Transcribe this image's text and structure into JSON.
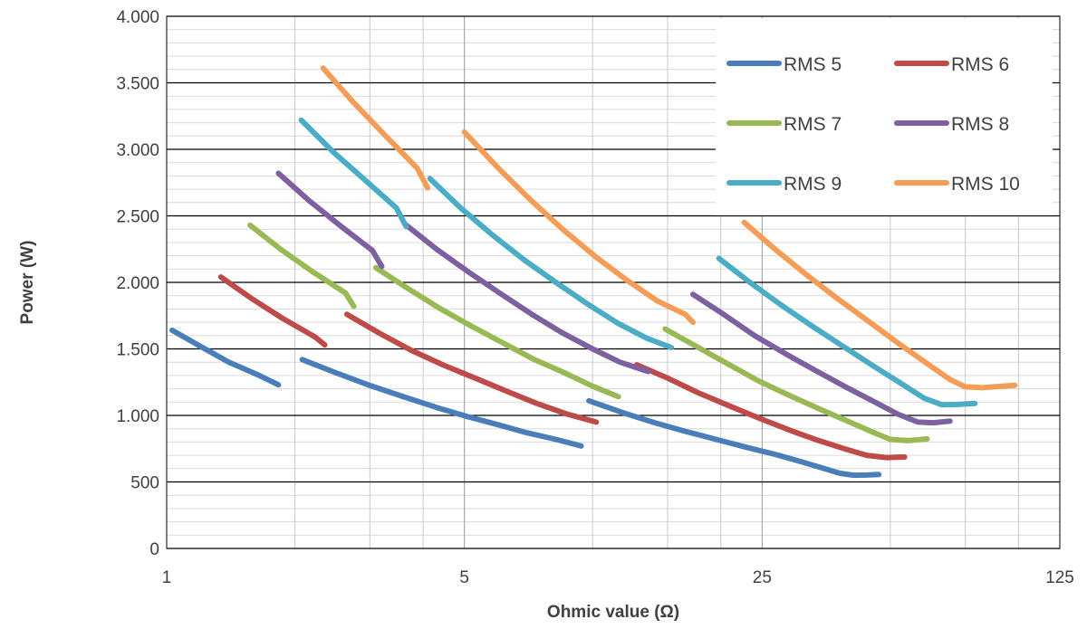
{
  "chart_data": {
    "type": "line",
    "xlabel": "Ohmic value (Ω)",
    "ylabel": "Power (W)",
    "x_scale": "log",
    "xlim": [
      1,
      125
    ],
    "ylim": [
      0,
      4000
    ],
    "x_ticks": [
      {
        "value": 1,
        "label": "1"
      },
      {
        "value": 5,
        "label": "5"
      },
      {
        "value": 25,
        "label": "25"
      },
      {
        "value": 125,
        "label": "125"
      }
    ],
    "y_ticks": [
      {
        "value": 0,
        "label": "0"
      },
      {
        "value": 500,
        "label": "500"
      },
      {
        "value": 1000,
        "label": "1.000"
      },
      {
        "value": 1500,
        "label": "1.500"
      },
      {
        "value": 2000,
        "label": "2.000"
      },
      {
        "value": 2500,
        "label": "2.500"
      },
      {
        "value": 3000,
        "label": "3.000"
      },
      {
        "value": 3500,
        "label": "3.500"
      },
      {
        "value": 4000,
        "label": "4.000"
      }
    ],
    "grid": {
      "major_y": true,
      "minor_y": true,
      "minor_x": true
    },
    "legend": "top-right",
    "series": [
      {
        "name": "RMS 5",
        "color": "#4A7EBB",
        "segments": [
          [
            [
              1.03,
              1640
            ],
            [
              1.2,
              1520
            ],
            [
              1.4,
              1400
            ],
            [
              1.65,
              1300
            ],
            [
              1.83,
              1230
            ]
          ],
          [
            [
              2.08,
              1420
            ],
            [
              2.5,
              1320
            ],
            [
              3,
              1225
            ],
            [
              3.6,
              1140
            ],
            [
              4.3,
              1060
            ],
            [
              5.1,
              990
            ],
            [
              6,
              930
            ],
            [
              7,
              870
            ],
            [
              8.2,
              820
            ],
            [
              9.4,
              770
            ]
          ],
          [
            [
              9.8,
              1110
            ],
            [
              11.8,
              1020
            ],
            [
              14,
              945
            ],
            [
              16.5,
              880
            ],
            [
              19.5,
              820
            ],
            [
              23,
              760
            ],
            [
              27,
              705
            ],
            [
              31,
              650
            ],
            [
              35,
              600
            ],
            [
              38,
              565
            ],
            [
              41,
              550
            ],
            [
              44,
              552
            ],
            [
              47,
              556
            ]
          ]
        ]
      },
      {
        "name": "RMS 6",
        "color": "#BE4B48",
        "segments": [
          [
            [
              1.34,
              2040
            ],
            [
              1.58,
              1880
            ],
            [
              1.87,
              1730
            ],
            [
              2.23,
              1590
            ],
            [
              2.35,
              1530
            ]
          ],
          [
            [
              2.65,
              1760
            ],
            [
              3.15,
              1620
            ],
            [
              3.75,
              1490
            ],
            [
              4.45,
              1380
            ],
            [
              5.3,
              1280
            ],
            [
              6.3,
              1180
            ],
            [
              7.4,
              1090
            ],
            [
              8.7,
              1010
            ],
            [
              10.2,
              950
            ]
          ],
          [
            [
              12.7,
              1380
            ],
            [
              15,
              1280
            ],
            [
              17.7,
              1170
            ],
            [
              21,
              1070
            ],
            [
              25,
              970
            ],
            [
              29.5,
              880
            ],
            [
              34,
              810
            ],
            [
              39,
              750
            ],
            [
              44,
              700
            ],
            [
              49,
              683
            ],
            [
              54,
              688
            ]
          ]
        ]
      },
      {
        "name": "RMS 7",
        "color": "#98B954",
        "segments": [
          [
            [
              1.57,
              2430
            ],
            [
              1.85,
              2250
            ],
            [
              2.2,
              2080
            ],
            [
              2.63,
              1920
            ],
            [
              2.75,
              1820
            ]
          ],
          [
            [
              3.1,
              2110
            ],
            [
              3.7,
              1950
            ],
            [
              4.4,
              1800
            ],
            [
              5.2,
              1670
            ],
            [
              6.2,
              1540
            ],
            [
              7.3,
              1420
            ],
            [
              8.6,
              1320
            ],
            [
              10,
              1220
            ],
            [
              11.5,
              1140
            ]
          ],
          [
            [
              14.8,
              1650
            ],
            [
              17.5,
              1520
            ],
            [
              20.7,
              1390
            ],
            [
              24.5,
              1260
            ],
            [
              29,
              1150
            ],
            [
              34,
              1050
            ],
            [
              39.5,
              960
            ],
            [
              45,
              880
            ],
            [
              50,
              820
            ],
            [
              55,
              810
            ],
            [
              61,
              823
            ]
          ]
        ]
      },
      {
        "name": "RMS 8",
        "color": "#7D60A0",
        "segments": [
          [
            [
              1.83,
              2820
            ],
            [
              2.15,
              2620
            ],
            [
              2.57,
              2420
            ],
            [
              3.04,
              2240
            ],
            [
              3.2,
              2120
            ]
          ],
          [
            [
              3.62,
              2440
            ],
            [
              4.3,
              2250
            ],
            [
              5.1,
              2080
            ],
            [
              6.05,
              1920
            ],
            [
              7.2,
              1760
            ],
            [
              8.5,
              1620
            ],
            [
              10,
              1500
            ],
            [
              11.6,
              1400
            ],
            [
              13.5,
              1330
            ]
          ],
          [
            [
              17.2,
              1910
            ],
            [
              20.3,
              1760
            ],
            [
              24,
              1600
            ],
            [
              28.5,
              1460
            ],
            [
              33.7,
              1330
            ],
            [
              39.5,
              1210
            ],
            [
              46,
              1100
            ],
            [
              52,
              1010
            ],
            [
              58,
              950
            ],
            [
              63,
              945
            ],
            [
              69,
              957
            ]
          ]
        ]
      },
      {
        "name": "RMS 9",
        "color": "#4BACC6",
        "segments": [
          [
            [
              2.07,
              3220
            ],
            [
              2.46,
              2980
            ],
            [
              2.92,
              2770
            ],
            [
              3.46,
              2560
            ],
            [
              3.65,
              2420
            ]
          ],
          [
            [
              4.15,
              2780
            ],
            [
              4.9,
              2560
            ],
            [
              5.8,
              2360
            ],
            [
              6.9,
              2170
            ],
            [
              8.2,
              2000
            ],
            [
              9.7,
              1840
            ],
            [
              11.5,
              1690
            ],
            [
              13.4,
              1580
            ],
            [
              15.3,
              1510
            ]
          ],
          [
            [
              19.8,
              2180
            ],
            [
              23.4,
              2000
            ],
            [
              27.7,
              1830
            ],
            [
              32.8,
              1670
            ],
            [
              38.7,
              1520
            ],
            [
              45.7,
              1370
            ],
            [
              53,
              1240
            ],
            [
              60,
              1130
            ],
            [
              66,
              1080
            ],
            [
              72,
              1082
            ],
            [
              79,
              1090
            ]
          ]
        ]
      },
      {
        "name": "RMS 10",
        "color": "#F59D56",
        "segments": [
          [
            [
              2.33,
              3610
            ],
            [
              2.75,
              3350
            ],
            [
              3.27,
              3100
            ],
            [
              3.87,
              2860
            ],
            [
              4.1,
              2710
            ]
          ],
          [
            [
              5,
              3130
            ],
            [
              6,
              2860
            ],
            [
              7.15,
              2620
            ],
            [
              8.5,
              2400
            ],
            [
              10.1,
              2200
            ],
            [
              12,
              2020
            ],
            [
              14.2,
              1860
            ],
            [
              16.5,
              1760
            ],
            [
              17.2,
              1700
            ]
          ],
          [
            [
              22.7,
              2450
            ],
            [
              26.8,
              2250
            ],
            [
              31.7,
              2060
            ],
            [
              37.5,
              1880
            ],
            [
              44.3,
              1710
            ],
            [
              52.3,
              1540
            ],
            [
              61,
              1390
            ],
            [
              69,
              1270
            ],
            [
              75,
              1215
            ],
            [
              82,
              1208
            ],
            [
              90,
              1218
            ],
            [
              98,
              1226
            ]
          ]
        ]
      }
    ]
  }
}
